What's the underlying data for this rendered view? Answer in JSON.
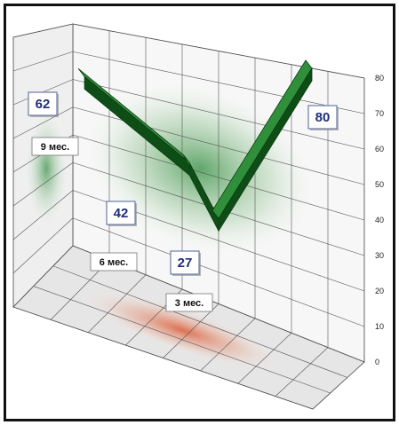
{
  "chart_data": {
    "type": "line",
    "style": "3d-ribbon",
    "title": "",
    "categories": [
      "9 мес.",
      "6 мес.",
      "3 мес.",
      ""
    ],
    "series": [
      {
        "values": [
          62,
          42,
          27,
          80
        ]
      }
    ],
    "data_labels": [
      "62",
      "42",
      "27",
      "80"
    ],
    "ylim": [
      0,
      80
    ],
    "yticks": [
      0,
      10,
      20,
      30,
      40,
      50,
      60,
      70,
      80
    ],
    "ylabel": "",
    "grid": true,
    "colors": {
      "ribbon": "#1f7a2a",
      "ribbon_side": "#0f4d17",
      "glow_wall": "#2e8b3a",
      "glow_floor": "#d9481f",
      "label_text": "#1f2e7a"
    }
  }
}
